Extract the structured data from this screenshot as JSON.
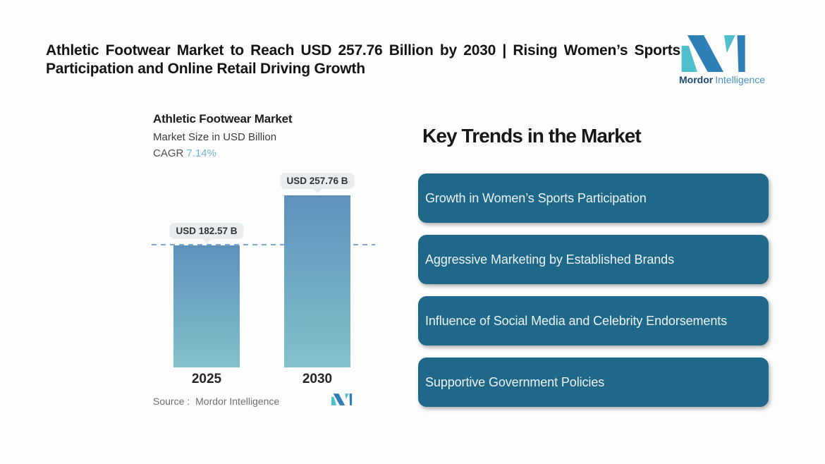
{
  "header": {
    "title": "Athletic Footwear Market to Reach USD 257.76 Billion by 2030 | Rising Women’s Sports Participation and Online Retail Driving Growth"
  },
  "brand": {
    "name_bold": "Mordor",
    "name_light": "Intelligence",
    "colors": {
      "teal": "#4fbecd",
      "blue": "#2e7fb5",
      "navy": "#1d4a73",
      "lightblue": "#4b90c4"
    }
  },
  "chart": {
    "title": "Athletic Footwear Market",
    "subtitle": "Market Size in USD Billion",
    "cagr_label": "CAGR",
    "cagr_value": "7.14%",
    "source_label": "Source :",
    "source_value": "Mordor Intelligence",
    "bars": [
      {
        "year": "2025",
        "label": "USD 182.57 B",
        "value": 182.57
      },
      {
        "year": "2030",
        "label": "USD 257.76 B",
        "value": 257.76
      }
    ],
    "colors": {
      "bar_gradient_top": "#5e90bb",
      "bar_gradient_bottom": "#82c1cb",
      "dashed_line": "#7aaad4",
      "value_pill_bg": "#e8eeef",
      "cagr_accent": "#72b1d6"
    }
  },
  "chart_data": {
    "type": "bar",
    "categories": [
      "2025",
      "2030"
    ],
    "values": [
      182.57,
      257.76
    ],
    "data_labels": [
      "USD 182.57 B",
      "USD 257.76 B"
    ],
    "title": "Athletic Footwear Market",
    "subtitle": "Market Size in USD Billion",
    "cagr": "7.14%",
    "unit": "USD Billion",
    "xlabel": "",
    "ylabel": "Market Size in USD Billion",
    "ylim": [
      0,
      260
    ],
    "reference_line": 182.57,
    "grid": false,
    "legend": false,
    "source": "Mordor Intelligence"
  },
  "trends": {
    "heading": "Key Trends in the Market",
    "items": [
      {
        "label": "Growth in Women’s Sports Participation"
      },
      {
        "label": "Aggressive Marketing by Established Brands"
      },
      {
        "label": "Influence of Social Media and Celebrity Endorsements"
      },
      {
        "label": "Supportive Government Policies"
      }
    ],
    "card_color": "#20688a"
  }
}
